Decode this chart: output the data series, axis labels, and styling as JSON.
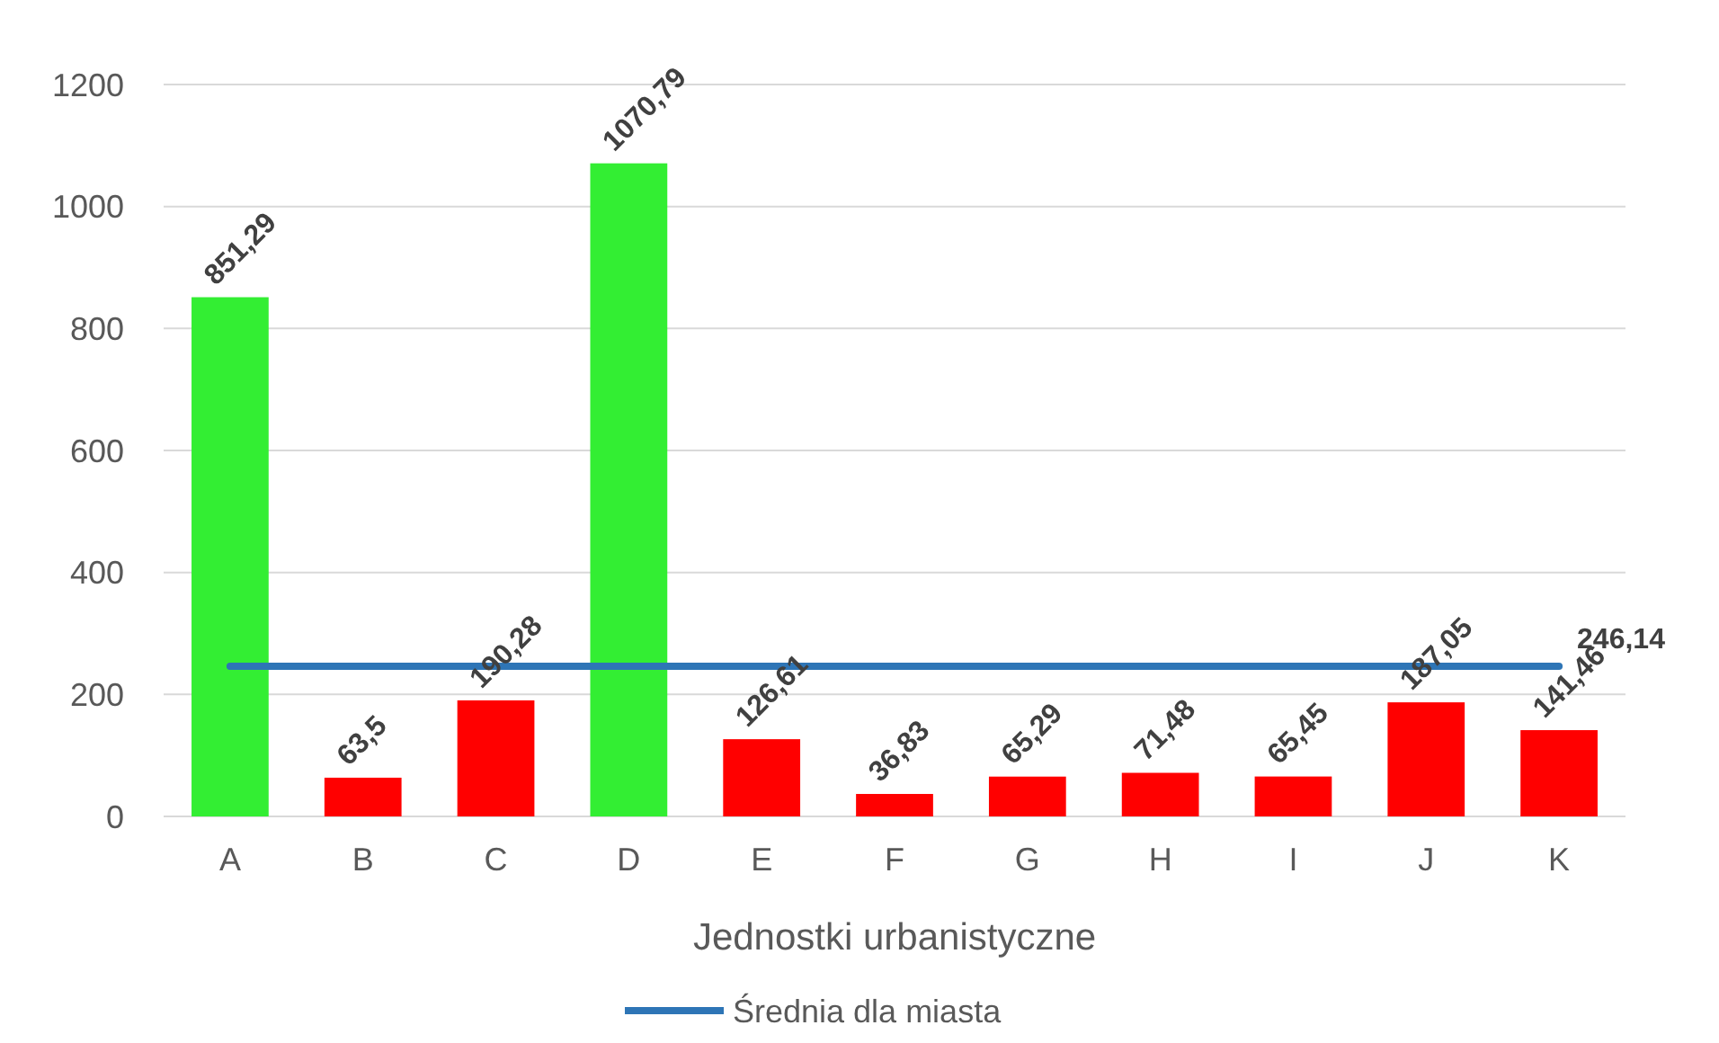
{
  "chart_data": {
    "type": "bar",
    "xlabel": "Jednostki urbanistyczne",
    "categories": [
      "A",
      "B",
      "C",
      "D",
      "E",
      "F",
      "G",
      "H",
      "I",
      "J",
      "K"
    ],
    "ylim": [
      0,
      1200
    ],
    "yticks": [
      0,
      200,
      400,
      600,
      800,
      1000,
      1200
    ],
    "grid": "y",
    "legend": "bottom",
    "series": [
      {
        "colors": [
          "#33ee33",
          "#ff0000",
          "#ff0000",
          "#33ee33",
          "#ff0000",
          "#ff0000",
          "#ff0000",
          "#ff0000",
          "#ff0000",
          "#ff0000",
          "#ff0000"
        ],
        "values": [
          851.29,
          63.5,
          190.28,
          1070.79,
          126.61,
          36.83,
          65.29,
          71.48,
          65.45,
          187.05,
          141.46
        ],
        "value_labels": [
          "851,29",
          "63,5",
          "190,28",
          "1070,79",
          "126,61",
          "36,83",
          "65,29",
          "71,48",
          "65,45",
          "187,05",
          "141,46"
        ]
      },
      {
        "type": "line",
        "name": "Średnia dla miasta",
        "color": "#2e75b6",
        "values": [
          246.14,
          246.14,
          246.14,
          246.14,
          246.14,
          246.14,
          246.14,
          246.14,
          246.14,
          246.14,
          246.14
        ],
        "value_labels": [
          null,
          null,
          null,
          null,
          null,
          null,
          null,
          null,
          null,
          null,
          "246,14"
        ]
      }
    ]
  }
}
